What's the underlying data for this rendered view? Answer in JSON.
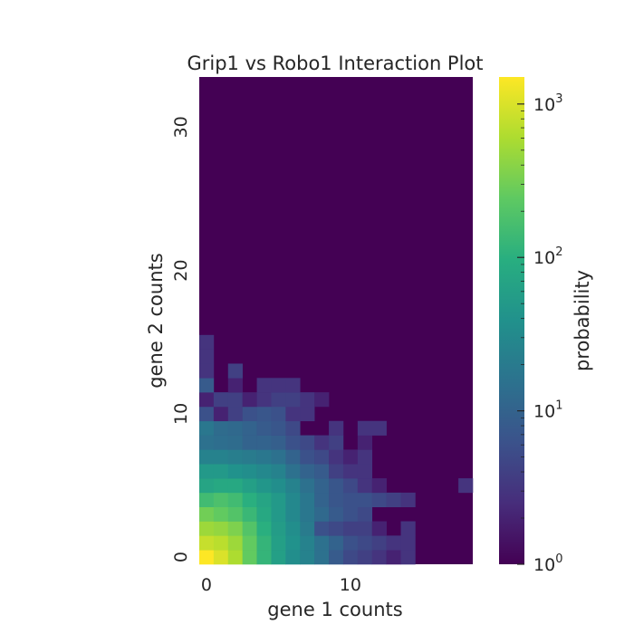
{
  "chart_data": {
    "type": "heatmap",
    "title": "Grip1 vs Robo1 Interaction Plot",
    "xlabel": "gene 1 counts",
    "ylabel": "gene 2 counts",
    "x_ticks": [
      0,
      10
    ],
    "y_ticks": [
      0,
      10,
      20,
      30
    ],
    "x_bins": 19,
    "y_bins": 34,
    "colormap": "viridis",
    "colorbar": {
      "label": "probability",
      "scale": "log",
      "range": [
        1,
        1500
      ],
      "major_ticks": [
        {
          "value": 1,
          "base": "10",
          "exp": "0"
        },
        {
          "value": 10,
          "base": "10",
          "exp": "1"
        },
        {
          "value": 100,
          "base": "10",
          "exp": "2"
        },
        {
          "value": 1000,
          "base": "10",
          "exp": "3"
        }
      ]
    },
    "background_value": 1,
    "cells": [
      [
        0,
        0,
        1500
      ],
      [
        1,
        0,
        1000
      ],
      [
        2,
        0,
        600
      ],
      [
        3,
        0,
        250
      ],
      [
        4,
        0,
        120
      ],
      [
        5,
        0,
        60
      ],
      [
        6,
        0,
        35
      ],
      [
        7,
        0,
        25
      ],
      [
        8,
        0,
        15
      ],
      [
        9,
        0,
        8
      ],
      [
        10,
        0,
        5
      ],
      [
        11,
        0,
        4
      ],
      [
        12,
        0,
        3
      ],
      [
        13,
        0,
        2
      ],
      [
        14,
        0,
        3
      ],
      [
        0,
        1,
        800
      ],
      [
        1,
        1,
        700
      ],
      [
        2,
        1,
        500
      ],
      [
        3,
        1,
        250
      ],
      [
        4,
        1,
        120
      ],
      [
        5,
        1,
        60
      ],
      [
        6,
        1,
        40
      ],
      [
        7,
        1,
        25
      ],
      [
        8,
        1,
        15
      ],
      [
        9,
        1,
        10
      ],
      [
        10,
        1,
        6
      ],
      [
        11,
        1,
        5
      ],
      [
        12,
        1,
        4
      ],
      [
        13,
        1,
        3
      ],
      [
        14,
        1,
        3
      ],
      [
        0,
        2,
        500
      ],
      [
        1,
        2,
        450
      ],
      [
        2,
        2,
        350
      ],
      [
        3,
        2,
        200
      ],
      [
        4,
        2,
        100
      ],
      [
        5,
        2,
        55
      ],
      [
        6,
        2,
        35
      ],
      [
        7,
        2,
        20
      ],
      [
        8,
        2,
        6
      ],
      [
        9,
        2,
        5
      ],
      [
        10,
        2,
        4
      ],
      [
        11,
        2,
        4
      ],
      [
        12,
        2,
        2
      ],
      [
        14,
        2,
        3
      ],
      [
        0,
        3,
        300
      ],
      [
        1,
        3,
        250
      ],
      [
        2,
        3,
        200
      ],
      [
        3,
        3,
        130
      ],
      [
        4,
        3,
        80
      ],
      [
        5,
        3,
        50
      ],
      [
        6,
        3,
        30
      ],
      [
        7,
        3,
        18
      ],
      [
        8,
        3,
        12
      ],
      [
        9,
        3,
        8
      ],
      [
        10,
        3,
        6
      ],
      [
        11,
        3,
        5
      ],
      [
        0,
        4,
        150
      ],
      [
        1,
        4,
        180
      ],
      [
        2,
        4,
        150
      ],
      [
        3,
        4,
        100
      ],
      [
        4,
        4,
        70
      ],
      [
        5,
        4,
        50
      ],
      [
        6,
        4,
        30
      ],
      [
        7,
        4,
        18
      ],
      [
        8,
        4,
        10
      ],
      [
        9,
        4,
        7
      ],
      [
        10,
        4,
        6
      ],
      [
        11,
        4,
        6
      ],
      [
        12,
        4,
        5
      ],
      [
        13,
        4,
        4
      ],
      [
        14,
        4,
        3
      ],
      [
        0,
        5,
        70
      ],
      [
        1,
        5,
        80
      ],
      [
        2,
        5,
        80
      ],
      [
        3,
        5,
        60
      ],
      [
        4,
        5,
        45
      ],
      [
        5,
        5,
        35
      ],
      [
        6,
        5,
        25
      ],
      [
        7,
        5,
        15
      ],
      [
        8,
        5,
        10
      ],
      [
        9,
        5,
        7
      ],
      [
        10,
        5,
        5
      ],
      [
        11,
        5,
        3
      ],
      [
        12,
        5,
        2
      ],
      [
        18,
        5,
        3
      ],
      [
        0,
        6,
        50
      ],
      [
        1,
        6,
        50
      ],
      [
        2,
        6,
        40
      ],
      [
        3,
        6,
        35
      ],
      [
        4,
        6,
        30
      ],
      [
        5,
        6,
        25
      ],
      [
        6,
        6,
        15
      ],
      [
        7,
        6,
        10
      ],
      [
        8,
        6,
        8
      ],
      [
        9,
        6,
        4
      ],
      [
        10,
        6,
        3
      ],
      [
        11,
        6,
        3
      ],
      [
        0,
        7,
        25
      ],
      [
        1,
        7,
        25
      ],
      [
        2,
        7,
        22
      ],
      [
        3,
        7,
        20
      ],
      [
        4,
        7,
        18
      ],
      [
        5,
        7,
        15
      ],
      [
        6,
        7,
        10
      ],
      [
        7,
        7,
        6
      ],
      [
        8,
        7,
        5
      ],
      [
        9,
        7,
        3
      ],
      [
        10,
        7,
        2
      ],
      [
        11,
        7,
        3
      ],
      [
        0,
        8,
        15
      ],
      [
        1,
        8,
        14
      ],
      [
        2,
        8,
        13
      ],
      [
        3,
        8,
        10
      ],
      [
        4,
        8,
        10
      ],
      [
        5,
        8,
        9
      ],
      [
        6,
        8,
        6
      ],
      [
        7,
        8,
        5
      ],
      [
        8,
        8,
        3
      ],
      [
        9,
        8,
        4
      ],
      [
        11,
        8,
        2
      ],
      [
        0,
        9,
        18
      ],
      [
        1,
        9,
        13
      ],
      [
        2,
        9,
        12
      ],
      [
        3,
        9,
        10
      ],
      [
        4,
        9,
        8
      ],
      [
        5,
        9,
        7
      ],
      [
        6,
        9,
        5
      ],
      [
        9,
        9,
        3
      ],
      [
        11,
        9,
        3
      ],
      [
        12,
        9,
        3
      ],
      [
        0,
        10,
        6
      ],
      [
        1,
        10,
        2
      ],
      [
        2,
        10,
        4
      ],
      [
        3,
        10,
        6
      ],
      [
        4,
        10,
        7
      ],
      [
        5,
        10,
        6
      ],
      [
        6,
        10,
        3
      ],
      [
        7,
        10,
        3
      ],
      [
        0,
        11,
        2
      ],
      [
        1,
        11,
        4
      ],
      [
        2,
        11,
        4
      ],
      [
        3,
        11,
        2
      ],
      [
        4,
        11,
        3
      ],
      [
        5,
        11,
        4
      ],
      [
        6,
        11,
        4
      ],
      [
        7,
        11,
        3
      ],
      [
        8,
        11,
        2
      ],
      [
        0,
        12,
        8
      ],
      [
        2,
        12,
        2
      ],
      [
        4,
        12,
        3
      ],
      [
        5,
        12,
        3
      ],
      [
        6,
        12,
        3
      ],
      [
        0,
        13,
        3
      ],
      [
        2,
        13,
        4
      ],
      [
        0,
        14,
        3
      ],
      [
        0,
        15,
        3
      ]
    ]
  }
}
